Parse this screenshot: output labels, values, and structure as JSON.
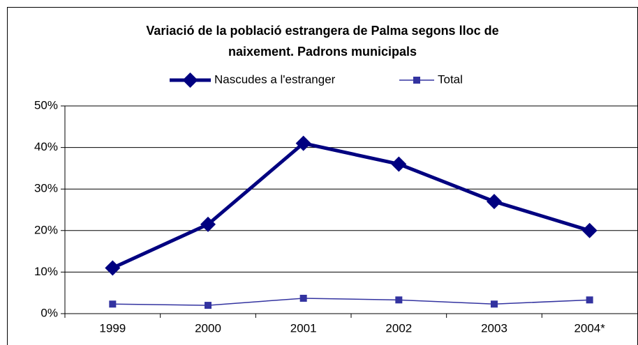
{
  "chart_data": {
    "type": "line",
    "title": [
      "Variació de la població estrangera de Palma segons lloc de",
      "naixement. Padrons municipals"
    ],
    "categories": [
      "1999",
      "2000",
      "2001",
      "2002",
      "2003",
      "2004*"
    ],
    "series": [
      {
        "name": "Nascudes a l'estranger",
        "color": "#000080",
        "marker": "diamond",
        "values": [
          11,
          21.5,
          41,
          36,
          27,
          20
        ]
      },
      {
        "name": "Total",
        "color": "#3333a0",
        "marker": "square",
        "values": [
          2.3,
          2.0,
          3.7,
          3.3,
          2.3,
          3.3
        ]
      }
    ],
    "ylim": [
      0,
      50
    ],
    "yticks": [
      {
        "value": 0,
        "label": "0%"
      },
      {
        "value": 10,
        "label": "10%"
      },
      {
        "value": 20,
        "label": "20%"
      },
      {
        "value": 30,
        "label": "30%"
      },
      {
        "value": 40,
        "label": "40%"
      },
      {
        "value": 50,
        "label": "50%"
      }
    ],
    "grid": true,
    "legend": "top"
  }
}
